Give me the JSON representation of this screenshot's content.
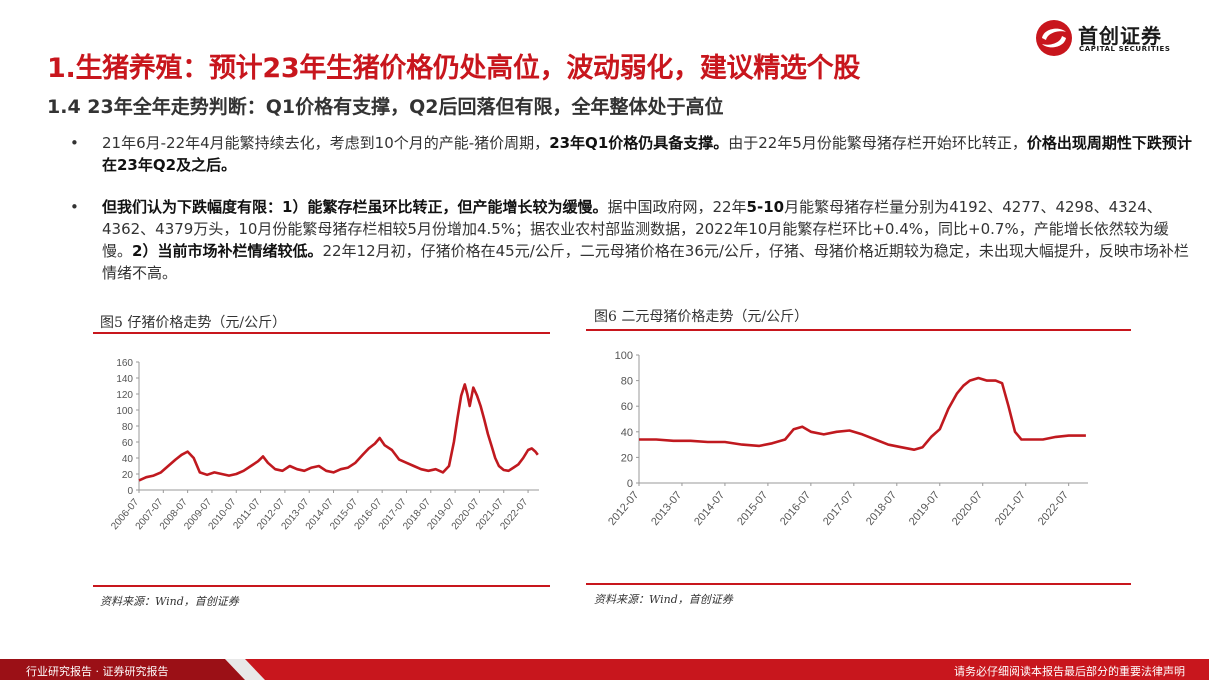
{
  "header": {
    "logo_cn": "首创证券",
    "logo_en": "CAPITAL SECURITIES",
    "title": "1.生猪养殖：预计23年生猪价格仍处高位，波动弱化，建议精选个股",
    "subtitle": "1.4 23年全年走势判断：Q1价格有支撑，Q2后回落但有限，全年整体处于高位"
  },
  "bullets": {
    "b1_p1": "21年6月-22年4月能繁持续去化，考虑到10个月的产能-猪价周期，",
    "b1_p2": "23年Q1价格仍具备支撑。",
    "b1_p3": "由于22年5月份能繁母猪存栏开始环比转正，",
    "b1_p4": "价格出现周期性下跌预计在23年Q2及之后。",
    "b2_p1": "但我们认为下跌幅度有限：1）能繁存栏虽环比转正，但产能增长较为缓慢。",
    "b2_p2": "据中国政府网，22年",
    "b2_p3": "5-10",
    "b2_p4": "月能繁母猪存栏量分别为4192、4277、4298、4324、4362、4379万头，10月份能繁母猪存栏相较5月份增加4.5%；据农业农村部监测数据，2022年10月能繁存栏环比+0.4%，同比+0.7%，产能增长依然较为缓慢。",
    "b2_p5": "2）当前市场补栏情绪较低。",
    "b2_p6": "22年12月初，仔猪价格在45元/公斤，二元母猪价格在36元/公斤，仔猪、母猪价格近期较为稳定，未出现大幅提升，反映市场补栏情绪不高。"
  },
  "figures": {
    "fig5": {
      "title": "图5 仔猪价格走势（元/公斤）",
      "source": "资料来源：Wind，首创证券"
    },
    "fig6": {
      "title": "图6 二元母猪价格走势（元/公斤）",
      "source": "资料来源：Wind，首创证券"
    }
  },
  "footer": {
    "left": "行业研究报告 · 证券研究报告",
    "right": "请务必仔细阅读本报告最后部分的重要法律声明"
  },
  "colors": {
    "accent": "#c8161d",
    "line": "#c0191f"
  },
  "chart_data": [
    {
      "type": "line",
      "title": "图5 仔猪价格走势（元/公斤）",
      "xlabel": "",
      "ylabel": "",
      "ylim": [
        0,
        160
      ],
      "yticks": [
        0,
        20,
        40,
        60,
        80,
        100,
        120,
        140,
        160
      ],
      "xlim": [
        2006.5,
        2022.95
      ],
      "xtick_labels": [
        "2006-07",
        "2007-07",
        "2008-07",
        "2009-07",
        "2010-07",
        "2011-07",
        "2012-07",
        "2013-07",
        "2014-07",
        "2015-07",
        "2016-07",
        "2017-07",
        "2018-07",
        "2019-07",
        "2020-07",
        "2021-07",
        "2022-07"
      ],
      "series": [
        {
          "x": [
            2006.5,
            2006.8,
            2007.1,
            2007.4,
            2007.7,
            2008.0,
            2008.25,
            2008.5,
            2008.75,
            2009.0,
            2009.3,
            2009.6,
            2009.9,
            2010.2,
            2010.5,
            2010.8,
            2011.1,
            2011.4,
            2011.6,
            2011.8,
            2012.1,
            2012.4,
            2012.7,
            2013.0,
            2013.3,
            2013.6,
            2013.9,
            2014.2,
            2014.5,
            2014.8,
            2015.1,
            2015.4,
            2015.7,
            2015.95,
            2016.2,
            2016.4,
            2016.6,
            2016.9,
            2017.2,
            2017.5,
            2017.8,
            2018.1,
            2018.4,
            2018.7,
            2019.0,
            2019.25,
            2019.45,
            2019.6,
            2019.75,
            2019.9,
            2020.0,
            2020.1,
            2020.25,
            2020.4,
            2020.55,
            2020.7,
            2020.85,
            2021.0,
            2021.15,
            2021.3,
            2021.5,
            2021.7,
            2021.9,
            2022.1,
            2022.3,
            2022.5,
            2022.65,
            2022.8,
            2022.9
          ],
          "y": [
            12,
            16,
            18,
            22,
            30,
            38,
            44,
            48,
            40,
            22,
            19,
            22,
            20,
            18,
            20,
            24,
            30,
            36,
            42,
            34,
            26,
            24,
            30,
            26,
            24,
            28,
            30,
            24,
            22,
            26,
            28,
            34,
            44,
            52,
            58,
            65,
            56,
            50,
            38,
            34,
            30,
            26,
            24,
            26,
            22,
            30,
            60,
            90,
            118,
            132,
            120,
            105,
            128,
            118,
            105,
            88,
            70,
            55,
            40,
            30,
            25,
            24,
            28,
            32,
            40,
            50,
            52,
            48,
            44
          ]
        }
      ]
    },
    {
      "type": "line",
      "title": "图6 二元母猪价格走势（元/公斤）",
      "xlabel": "",
      "ylabel": "",
      "ylim": [
        0,
        100
      ],
      "yticks": [
        0,
        20,
        40,
        60,
        80,
        100
      ],
      "xlim": [
        2012.5,
        2022.95
      ],
      "xtick_labels": [
        "2012-07",
        "2013-07",
        "2014-07",
        "2015-07",
        "2016-07",
        "2017-07",
        "2018-07",
        "2019-07",
        "2020-07",
        "2021-07",
        "2022-07"
      ],
      "series": [
        {
          "x": [
            2012.5,
            2012.9,
            2013.3,
            2013.7,
            2014.1,
            2014.5,
            2014.9,
            2015.3,
            2015.6,
            2015.9,
            2016.1,
            2016.3,
            2016.5,
            2016.8,
            2017.1,
            2017.4,
            2017.7,
            2018.0,
            2018.3,
            2018.6,
            2018.9,
            2019.1,
            2019.3,
            2019.5,
            2019.7,
            2019.9,
            2020.05,
            2020.2,
            2020.4,
            2020.6,
            2020.8,
            2020.95,
            2021.1,
            2021.25,
            2021.4,
            2021.6,
            2021.9,
            2022.2,
            2022.5,
            2022.7,
            2022.9
          ],
          "y": [
            34,
            34,
            33,
            33,
            32,
            32,
            30,
            29,
            31,
            34,
            42,
            44,
            40,
            38,
            40,
            41,
            38,
            34,
            30,
            28,
            26,
            28,
            36,
            42,
            58,
            70,
            76,
            80,
            82,
            80,
            80,
            78,
            60,
            40,
            34,
            34,
            34,
            36,
            37,
            37,
            37
          ]
        }
      ]
    }
  ]
}
